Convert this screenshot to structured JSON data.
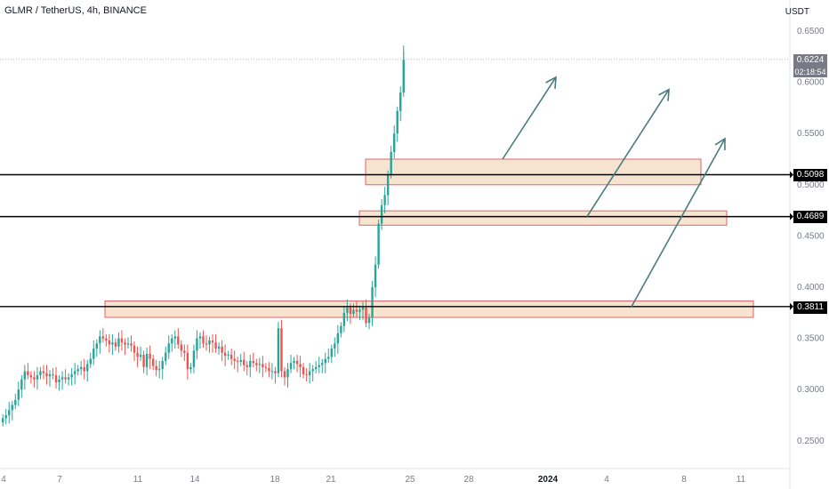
{
  "chart": {
    "title": "GLMR / TetherUS, 4h, BINANCE",
    "unit": "USDT"
  },
  "colors": {
    "up": "#26a69a",
    "down": "#ef5350",
    "zone_fill": "#f5dec8",
    "zone_stroke": "#e0656a",
    "arrow": "#4a7c7e",
    "level": "#000000",
    "axis_text": "#787b86"
  },
  "chart_data": {
    "type": "candlestick",
    "x_ticks": [
      "4",
      "7",
      "11",
      "14",
      "18",
      "21",
      "25",
      "28",
      "2024",
      "4",
      "8",
      "11"
    ],
    "y_ticks": [
      "0.6500",
      "0.6000",
      "0.5500",
      "0.5000",
      "0.4500",
      "0.4000",
      "0.3500",
      "0.3000",
      "0.2500"
    ],
    "ylim": [
      0.2,
      0.67
    ],
    "last_price": "0.6224",
    "countdown": "02:18:54",
    "horizontal_levels": [
      "0.5098",
      "0.4689",
      "0.3811"
    ],
    "zones": [
      {
        "low": 0.5,
        "high": 0.525
      },
      {
        "low": 0.4605,
        "high": 0.4745
      },
      {
        "low": 0.3705,
        "high": 0.3865
      }
    ],
    "arrows": [
      {
        "from": [
          0.565,
          0.525
        ],
        "to": [
          0.625,
          0.605
        ]
      },
      {
        "from": [
          0.66,
          0.469
        ],
        "to": [
          0.752,
          0.593
        ]
      },
      {
        "from": [
          0.71,
          0.381
        ],
        "to": [
          0.815,
          0.545
        ]
      }
    ],
    "closes": [
      0.272,
      0.275,
      0.28,
      0.285,
      0.29,
      0.3,
      0.31,
      0.318,
      0.314,
      0.312,
      0.31,
      0.314,
      0.318,
      0.316,
      0.313,
      0.315,
      0.314,
      0.307,
      0.31,
      0.312,
      0.31,
      0.312,
      0.315,
      0.318,
      0.32,
      0.322,
      0.318,
      0.325,
      0.33,
      0.34,
      0.345,
      0.352,
      0.35,
      0.348,
      0.344,
      0.346,
      0.342,
      0.35,
      0.346,
      0.344,
      0.345,
      0.343,
      0.336,
      0.332,
      0.334,
      0.322,
      0.335,
      0.33,
      0.323,
      0.319,
      0.32,
      0.328,
      0.336,
      0.345,
      0.35,
      0.352,
      0.344,
      0.338,
      0.336,
      0.32,
      0.322,
      0.338,
      0.35,
      0.352,
      0.345,
      0.344,
      0.348,
      0.346,
      0.34,
      0.342,
      0.336,
      0.333,
      0.334,
      0.33,
      0.328,
      0.327,
      0.329,
      0.324,
      0.322,
      0.328,
      0.326,
      0.324,
      0.325,
      0.322,
      0.321,
      0.318,
      0.318,
      0.316,
      0.36,
      0.318,
      0.312,
      0.32,
      0.326,
      0.328,
      0.325,
      0.322,
      0.315,
      0.314,
      0.318,
      0.32,
      0.322,
      0.324,
      0.326,
      0.33,
      0.332,
      0.34,
      0.345,
      0.355,
      0.362,
      0.375,
      0.38,
      0.374,
      0.378,
      0.376,
      0.378,
      0.38,
      0.365,
      0.37,
      0.4,
      0.422,
      0.462,
      0.48,
      0.49,
      0.51,
      0.532,
      0.55,
      0.572,
      0.59,
      0.622
    ]
  }
}
